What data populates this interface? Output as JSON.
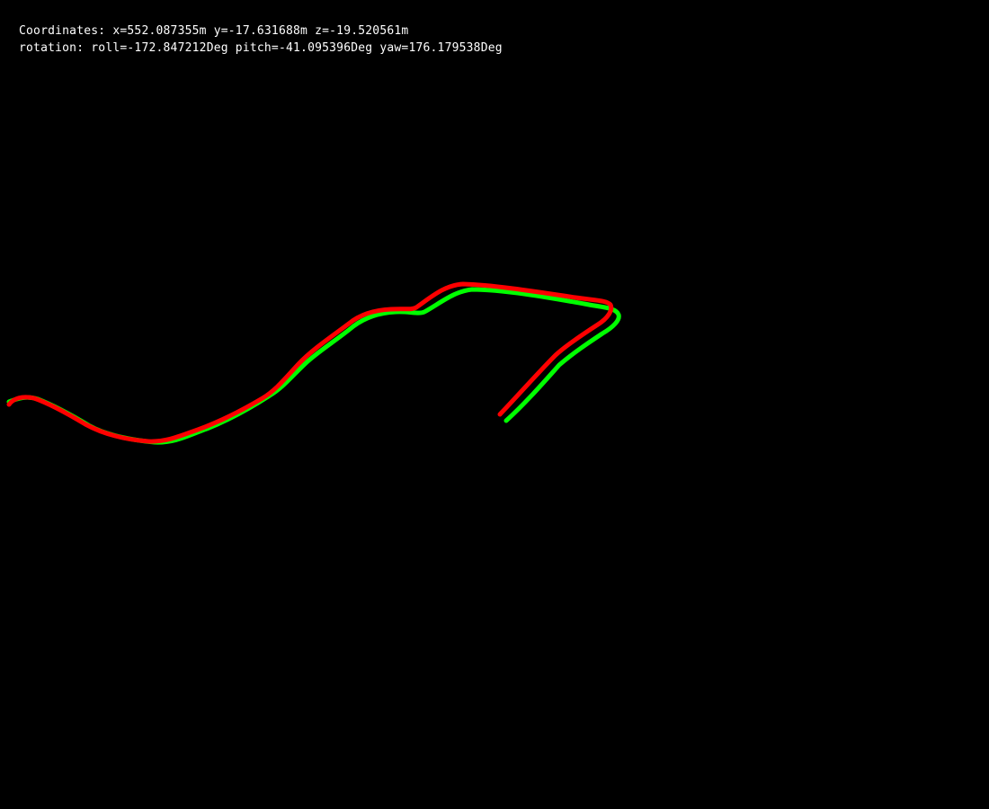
{
  "hud": {
    "coordinates": "Coordinates: x=552.087355m y=-17.631688m z=-19.520561m",
    "rotation": "rotation: roll=-172.847212Deg pitch=-41.095396Deg yaw=176.179538Deg"
  },
  "colors": {
    "background": "#000000",
    "text": "#ffffff",
    "ground_truth_path": "#00ff00",
    "estimated_path": "#ff0000"
  }
}
